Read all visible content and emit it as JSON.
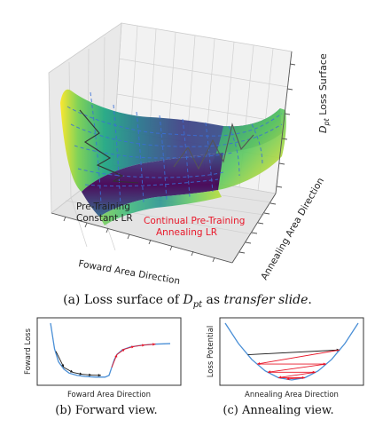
{
  "main_figure": {
    "z_axis_label_prefix": "D",
    "z_axis_label_subscript": "pt",
    "z_axis_label_suffix": " Loss Surface",
    "x_axis_label": "Foward Area Direction",
    "y_axis_label": "Annealing Area Direction",
    "annotation_pretraining_line1": "Pre-Training",
    "annotation_pretraining_line2": "Constant LR",
    "annotation_continual_line1": "Continual Pre-Training",
    "annotation_continual_line2": "Annealing LR",
    "annotation_continual_color": "#e8182a",
    "colormap": "viridis",
    "surface_colors": [
      "#440154",
      "#3b528b",
      "#21918c",
      "#5ec962",
      "#fde725"
    ],
    "wireframe_color": "#3a6fd8",
    "trajectory_color": "#333333"
  },
  "captions": {
    "a_prefix": "(a) Loss surface of ",
    "a_symbol": "D",
    "a_subscript": "pt",
    "a_middle": " as ",
    "a_italic": "transfer slide",
    "a_end": ".",
    "b": "(b) Forward view.",
    "c": "(c) Annealing view."
  },
  "chart_data": [
    {
      "type": "line",
      "panel": "b",
      "xlabel": "Foward Area Direction",
      "ylabel": "Foward Loss",
      "grid": false,
      "curve_color": "#4a8fd6",
      "series": [
        {
          "x": [
            0.06,
            0.09,
            0.12,
            0.16,
            0.2,
            0.26,
            0.32,
            0.4,
            0.47,
            0.5,
            0.52,
            0.54,
            0.56,
            0.6,
            0.66,
            0.74,
            0.84,
            0.96
          ],
          "y": [
            1.0,
            0.55,
            0.32,
            0.19,
            0.12,
            0.08,
            0.06,
            0.05,
            0.05,
            0.08,
            0.22,
            0.36,
            0.45,
            0.53,
            0.58,
            0.61,
            0.63,
            0.64
          ]
        }
      ],
      "arrow_colors": [
        "#1a1a1a",
        "#e8182a"
      ]
    },
    {
      "type": "line",
      "panel": "c",
      "xlabel": "Annealing Area Direction",
      "ylabel": "Loss Potential",
      "grid": false,
      "curve_color": "#4a8fd6",
      "series": [
        {
          "x": [
            0.0,
            0.1,
            0.2,
            0.3,
            0.4,
            0.5,
            0.6,
            0.7,
            0.8,
            0.9,
            1.0
          ],
          "y": [
            1.0,
            0.64,
            0.36,
            0.16,
            0.04,
            0.0,
            0.04,
            0.16,
            0.36,
            0.64,
            1.0
          ]
        }
      ],
      "arrow_colors": [
        "#1a1a1a",
        "#e8182a"
      ]
    }
  ]
}
